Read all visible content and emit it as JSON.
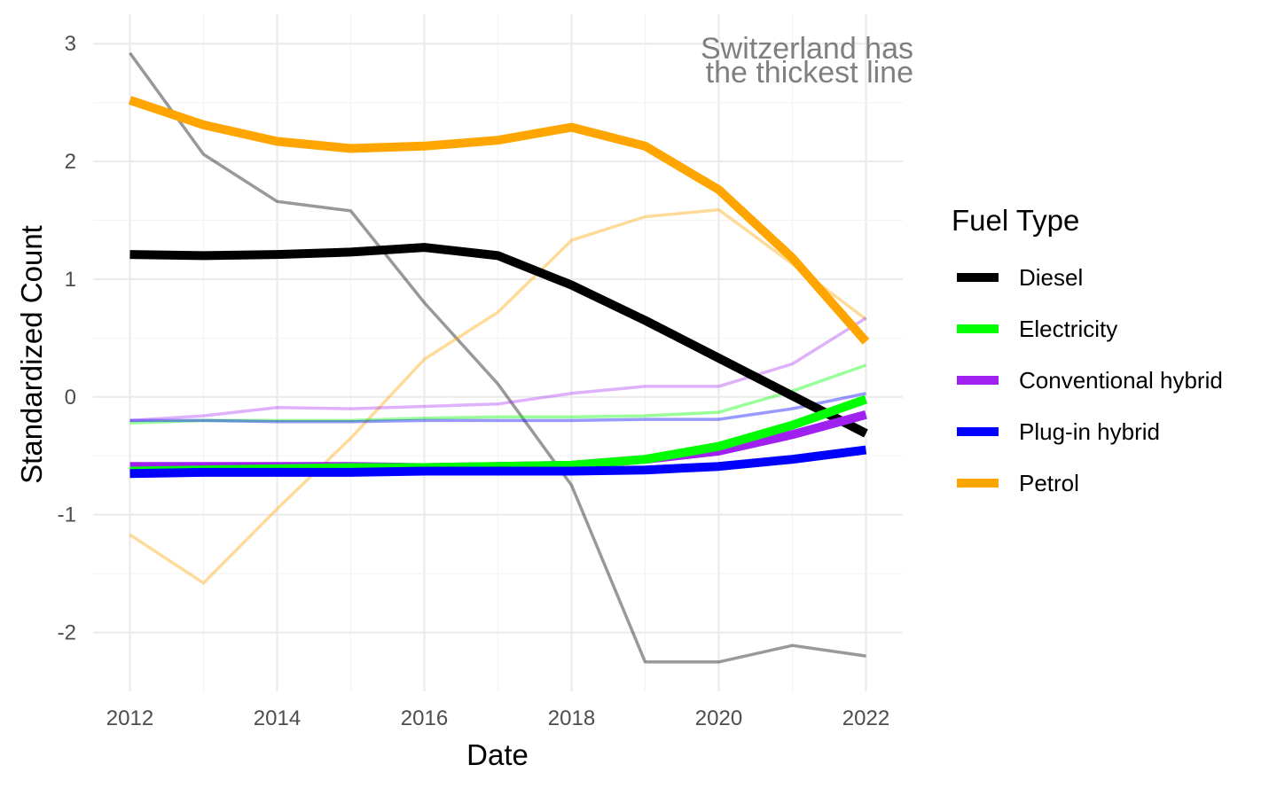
{
  "chart_data": {
    "type": "line",
    "xlabel": "Date",
    "ylabel": "Standardized Count",
    "xlim": [
      2011.5,
      2022.5
    ],
    "ylim": [
      -2.5,
      3.25
    ],
    "x_ticks": [
      2012,
      2014,
      2016,
      2018,
      2020,
      2022
    ],
    "y_ticks": [
      -2,
      -1,
      0,
      1,
      2,
      3
    ],
    "grid": true,
    "legend": {
      "title": "Fuel Type",
      "placement": "right",
      "entries": [
        {
          "name": "Diesel",
          "color": "#000000"
        },
        {
          "name": "Electricity",
          "color": "#00ff00"
        },
        {
          "name": "Conventional hybrid",
          "color": "#a020f0"
        },
        {
          "name": "Plug-in hybrid",
          "color": "#0000ff"
        },
        {
          "name": "Petrol",
          "color": "#ffa500"
        }
      ]
    },
    "annotation": {
      "lines": [
        "Switzerland has",
        "the thickest line"
      ]
    },
    "series": [
      {
        "name": "Diesel",
        "color": "#000000",
        "style": "thin",
        "opacity": 0.4,
        "x": [
          2012,
          2013,
          2014,
          2015,
          2016,
          2017,
          2018,
          2019,
          2020,
          2021,
          2022
        ],
        "y": [
          2.92,
          2.06,
          1.66,
          1.58,
          0.8,
          0.11,
          -0.75,
          -2.25,
          -2.25,
          -2.11,
          -2.2
        ]
      },
      {
        "name": "Petrol",
        "color": "#ffa500",
        "style": "thin",
        "opacity": 0.4,
        "x": [
          2012,
          2013,
          2014,
          2015,
          2016,
          2017,
          2018,
          2019,
          2020,
          2021,
          2022
        ],
        "y": [
          -1.17,
          -1.58,
          -0.95,
          -0.35,
          0.32,
          0.72,
          1.33,
          1.53,
          1.59,
          1.13,
          0.66
        ]
      },
      {
        "name": "Conventional hybrid",
        "color": "#a020f0",
        "style": "thin",
        "opacity": 0.35,
        "x": [
          2012,
          2013,
          2014,
          2015,
          2016,
          2017,
          2018,
          2019,
          2020,
          2021,
          2022
        ],
        "y": [
          -0.2,
          -0.16,
          -0.09,
          -0.1,
          -0.08,
          -0.06,
          0.03,
          0.09,
          0.09,
          0.28,
          0.67
        ]
      },
      {
        "name": "Electricity",
        "color": "#00ff00",
        "style": "thin",
        "opacity": 0.4,
        "x": [
          2012,
          2013,
          2014,
          2015,
          2016,
          2017,
          2018,
          2019,
          2020,
          2021,
          2022
        ],
        "y": [
          -0.22,
          -0.2,
          -0.2,
          -0.2,
          -0.18,
          -0.17,
          -0.17,
          -0.16,
          -0.13,
          0.05,
          0.27
        ]
      },
      {
        "name": "Plug-in hybrid",
        "color": "#0000ff",
        "style": "thin",
        "opacity": 0.4,
        "x": [
          2012,
          2013,
          2014,
          2015,
          2016,
          2017,
          2018,
          2019,
          2020,
          2021,
          2022
        ],
        "y": [
          -0.2,
          -0.2,
          -0.21,
          -0.21,
          -0.2,
          -0.2,
          -0.2,
          -0.19,
          -0.19,
          -0.1,
          0.03
        ]
      },
      {
        "name": "Diesel",
        "color": "#000000",
        "style": "thick",
        "opacity": 1,
        "x": [
          2012,
          2013,
          2014,
          2015,
          2016,
          2017,
          2018,
          2019,
          2020,
          2021,
          2022
        ],
        "y": [
          1.21,
          1.2,
          1.21,
          1.23,
          1.27,
          1.2,
          0.95,
          0.65,
          0.33,
          0.01,
          -0.31
        ]
      },
      {
        "name": "Petrol",
        "color": "#ffa500",
        "style": "thick",
        "opacity": 1,
        "x": [
          2012,
          2013,
          2014,
          2015,
          2016,
          2017,
          2018,
          2019,
          2020,
          2021,
          2022
        ],
        "y": [
          2.52,
          2.31,
          2.17,
          2.11,
          2.13,
          2.18,
          2.29,
          2.13,
          1.76,
          1.18,
          0.47
        ]
      },
      {
        "name": "Conventional hybrid",
        "color": "#a020f0",
        "style": "thick",
        "opacity": 1,
        "x": [
          2012,
          2013,
          2014,
          2015,
          2016,
          2017,
          2018,
          2019,
          2020,
          2021,
          2022
        ],
        "y": [
          -0.59,
          -0.59,
          -0.59,
          -0.59,
          -0.6,
          -0.59,
          -0.58,
          -0.53,
          -0.46,
          -0.32,
          -0.15
        ]
      },
      {
        "name": "Electricity",
        "color": "#00ff00",
        "style": "thick",
        "opacity": 1,
        "x": [
          2012,
          2013,
          2014,
          2015,
          2016,
          2017,
          2018,
          2019,
          2020,
          2021,
          2022
        ],
        "y": [
          -0.63,
          -0.62,
          -0.61,
          -0.6,
          -0.6,
          -0.59,
          -0.58,
          -0.53,
          -0.42,
          -0.24,
          -0.02
        ]
      },
      {
        "name": "Plug-in hybrid",
        "color": "#0000ff",
        "style": "thick",
        "opacity": 1,
        "x": [
          2012,
          2013,
          2014,
          2015,
          2016,
          2017,
          2018,
          2019,
          2020,
          2021,
          2022
        ],
        "y": [
          -0.65,
          -0.64,
          -0.64,
          -0.64,
          -0.63,
          -0.63,
          -0.63,
          -0.62,
          -0.59,
          -0.53,
          -0.45
        ]
      }
    ]
  }
}
